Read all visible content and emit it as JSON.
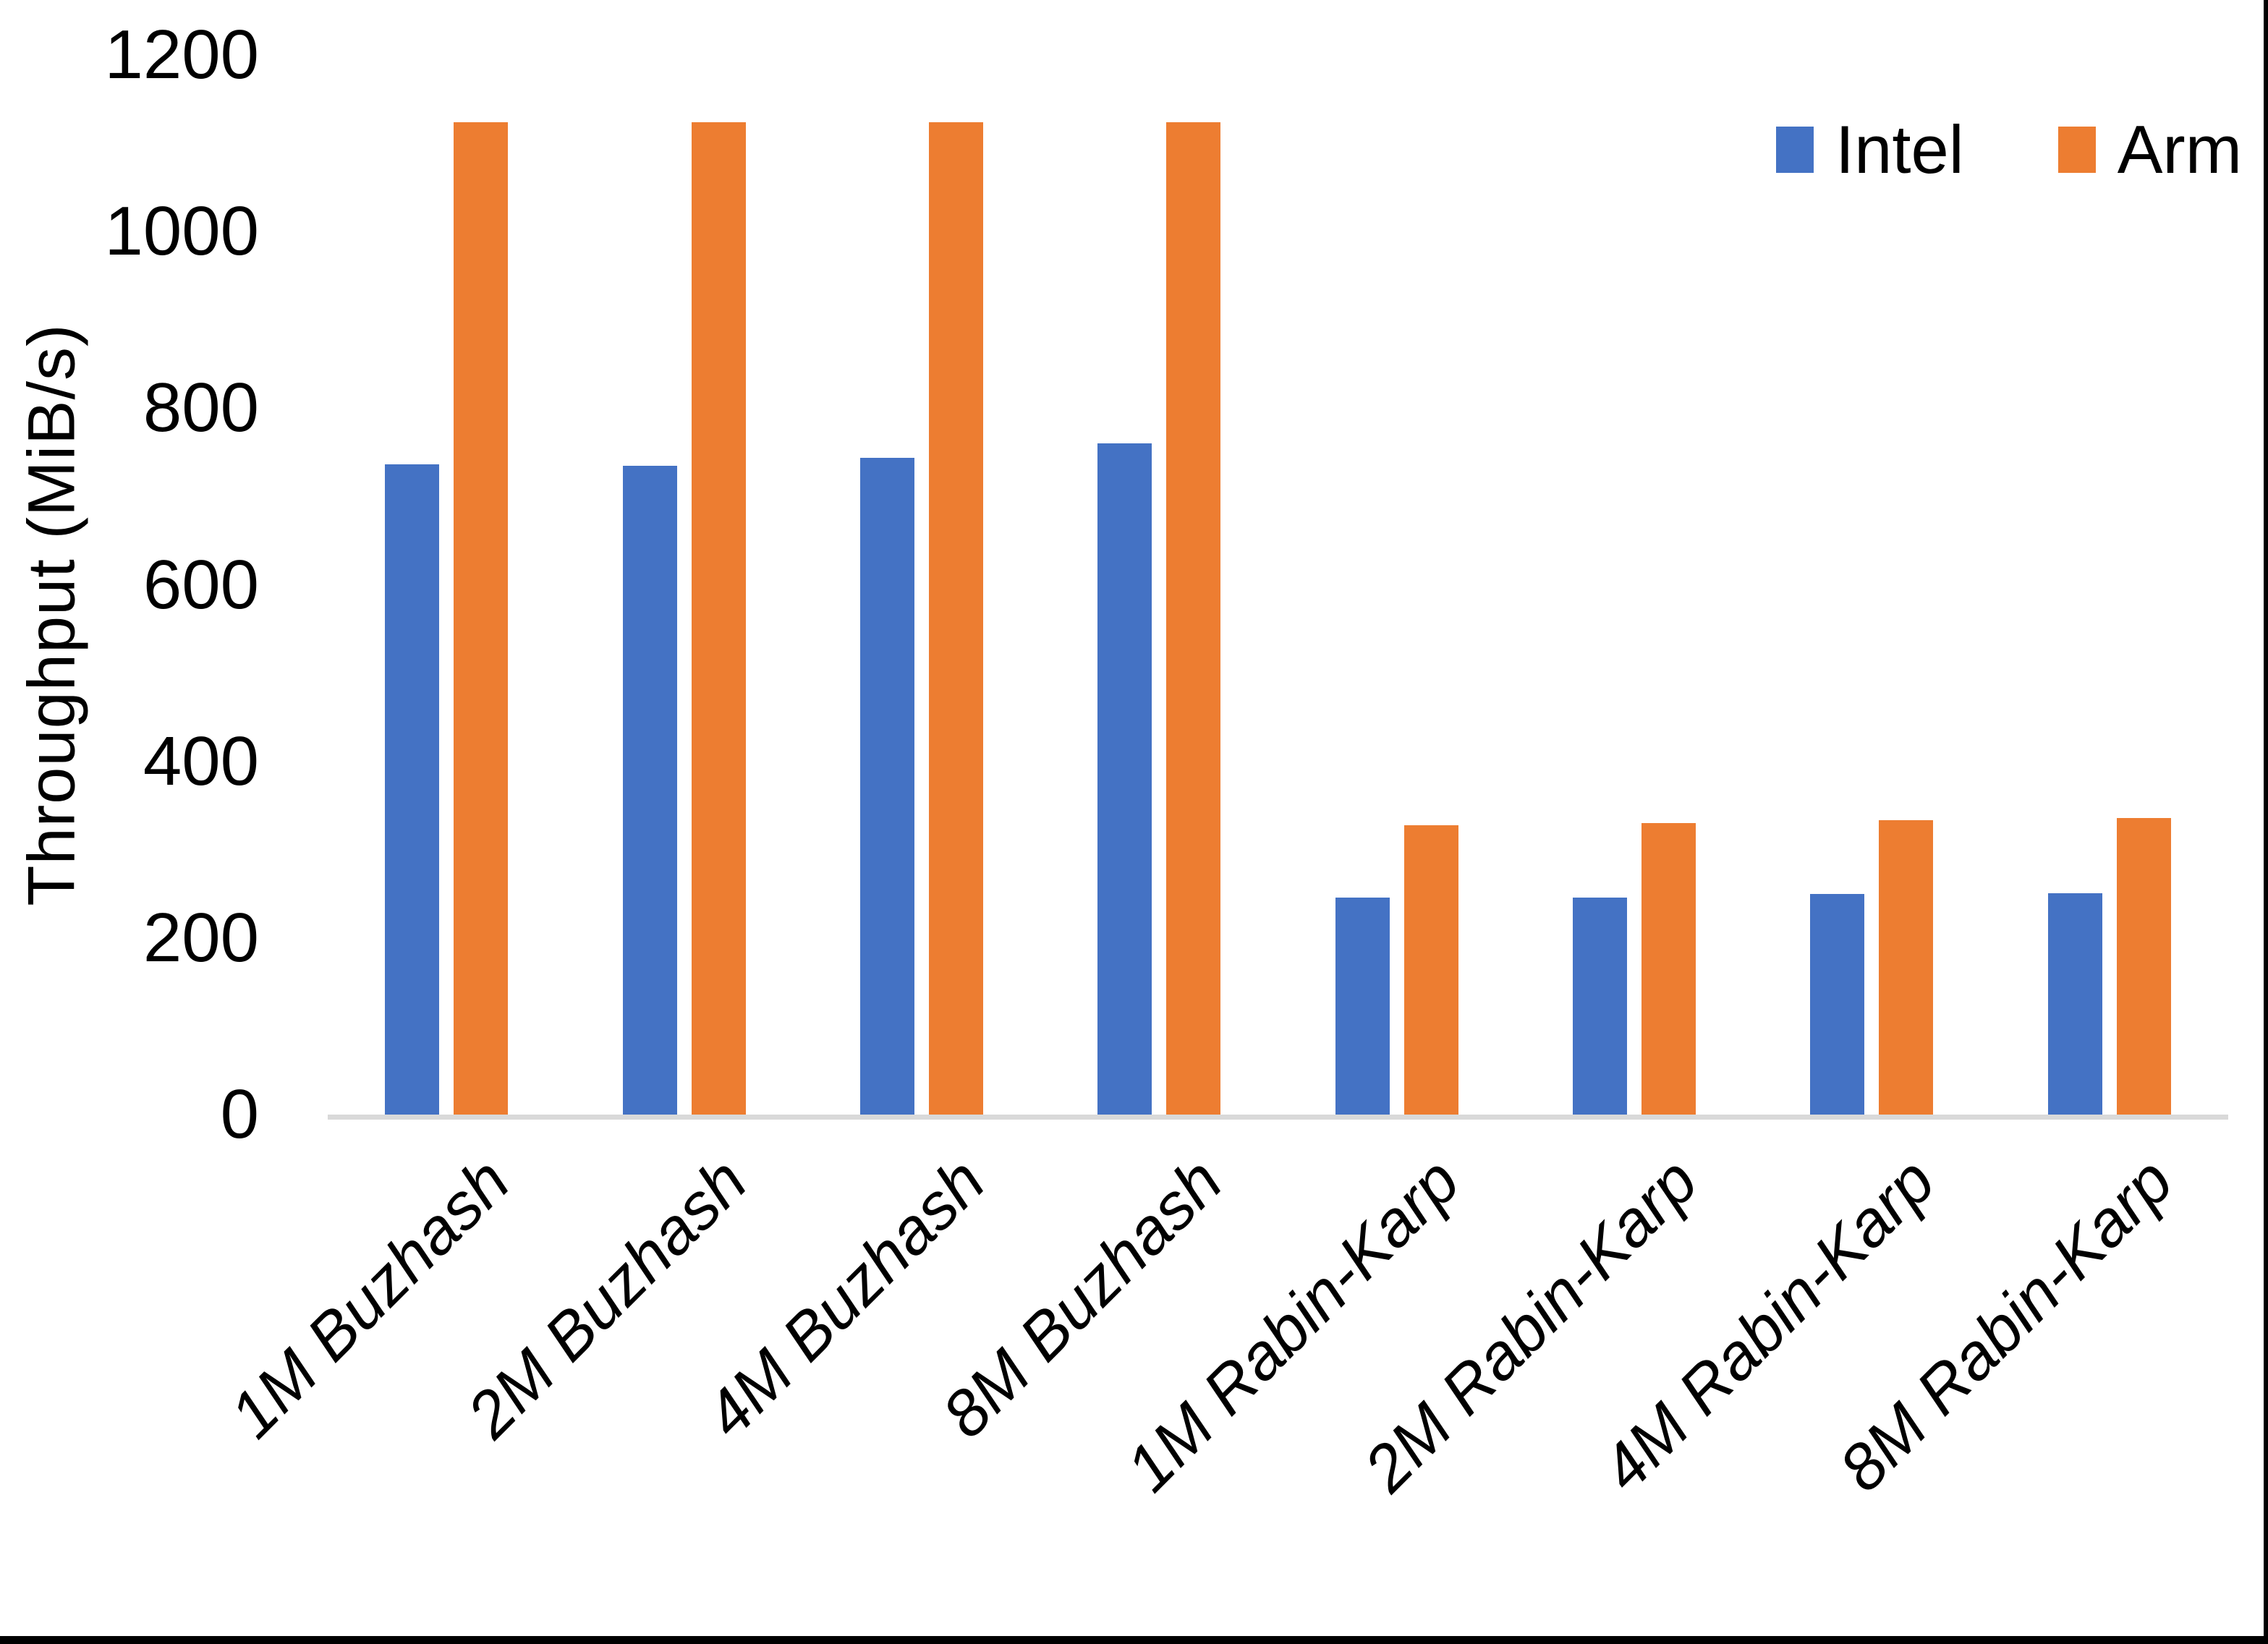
{
  "chart_data": {
    "type": "bar",
    "title": "",
    "ylabel": "Throughput (MiB/s)",
    "categories": [
      "1M Buzhash",
      "2M Buzhash",
      "4M Buzhash",
      "8M Buzhash",
      "1M Rabin-Karp",
      "2M Rabin-Karp",
      "4M Rabin-Karp",
      "8M Rabin-Karp"
    ],
    "series": [
      {
        "name": "Intel",
        "color": "#4472C4",
        "values": [
          736,
          735,
          744,
          760,
          246,
          246,
          250,
          251
        ]
      },
      {
        "name": "Arm",
        "color": "#ED7D31",
        "values": [
          1124,
          1124,
          1124,
          1124,
          328,
          330,
          333,
          336
        ]
      }
    ],
    "ylim": [
      0,
      1200
    ],
    "yticks": [
      0,
      200,
      400,
      600,
      800,
      1000,
      1200
    ],
    "grid": false,
    "legend_position": "top-right",
    "axis_line_color": "#D9D9D9",
    "text_color": "#000000",
    "background": "#FFFFFF",
    "frame": {
      "right_border": "#000000",
      "bottom_border": "#000000"
    }
  }
}
